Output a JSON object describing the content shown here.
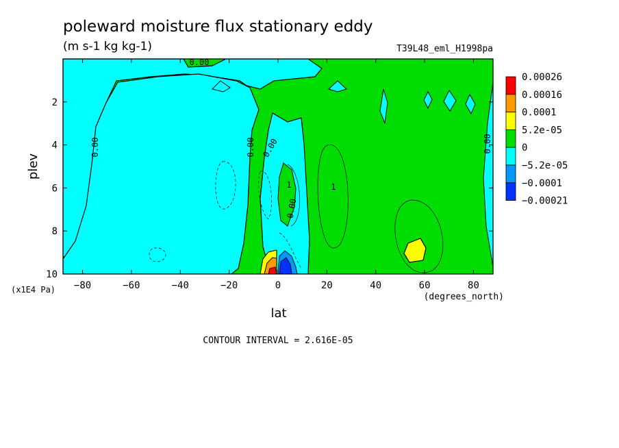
{
  "chart_data": {
    "type": "heatmap",
    "title": "poleward moisture flux stationary eddy",
    "units": "(m s-1 kg kg-1)",
    "dataset": "T39L48_eml_H1998pa",
    "xlabel": "lat",
    "xunits": "(degrees_north)",
    "ylabel": "plev",
    "yunits": "(x1E4 Pa)",
    "xlim": [
      -88,
      88
    ],
    "ylim": [
      10,
      0
    ],
    "x_ticks": [
      -80,
      -60,
      -40,
      -20,
      0,
      20,
      40,
      60,
      80
    ],
    "x_tick_labels": [
      "−80",
      "−60",
      "−40",
      "−20",
      "0",
      "20",
      "40",
      "60",
      "80"
    ],
    "y_ticks": [
      2,
      4,
      6,
      8,
      10
    ],
    "y_tick_labels": [
      "2",
      "4",
      "6",
      "8",
      "10"
    ],
    "contour_interval": "CONTOUR INTERVAL = 2.616E-05",
    "colorbar": [
      {
        "label": "0.00026",
        "color": "#ff0000"
      },
      {
        "label": "0.00016",
        "color": "#ff9900"
      },
      {
        "label": "0.0001",
        "color": "#ffff00"
      },
      {
        "label": "5.2e-05",
        "color": "#00dd00"
      },
      {
        "label": "0",
        "color": "#00ffff"
      },
      {
        "label": "−5.2e-05",
        "color": "#0099ff"
      },
      {
        "label": "−0.0001",
        "color": "#0033ff"
      },
      {
        "label": "−0.00021",
        "color": ""
      }
    ],
    "contour_labels": [
      "0.00",
      "0.00",
      "0.00",
      "0.00",
      "0.00",
      "0.00",
      "1",
      "1"
    ],
    "colors": {
      "positive_fill": "#00dd00",
      "negative_fill": "#00ffff"
    }
  }
}
